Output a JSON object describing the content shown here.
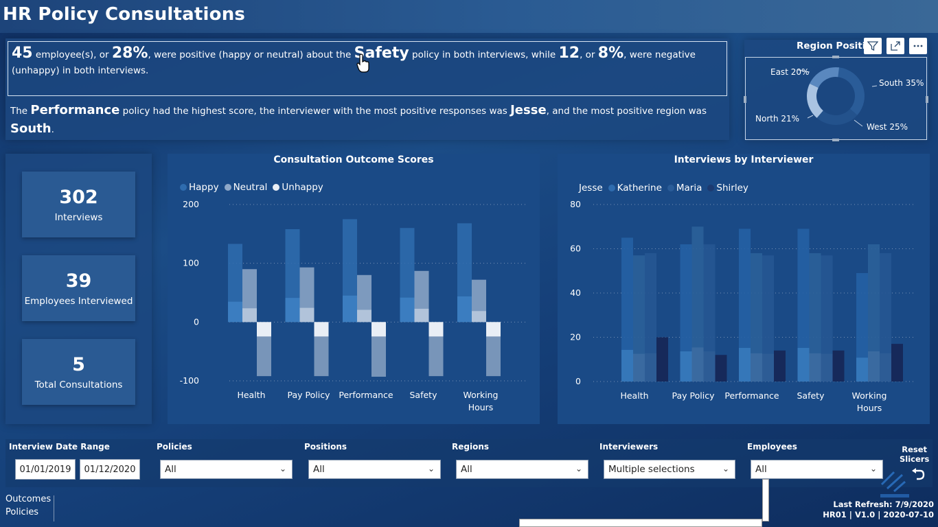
{
  "header": {
    "title": "HR Policy Consultations"
  },
  "narrative": {
    "s1_n1": "45",
    "s1_t1": " employee(s), or ",
    "s1_p1": "28%",
    "s1_t2": ", were positive (happy or neutral) about the ",
    "s1_policy": "Safety",
    "s1_t3": " policy in both interviews, while ",
    "s1_n2": "12",
    "s1_t4": ", or ",
    "s1_p2": "8%",
    "s1_t5": ", were negative (unhappy) in both interviews.",
    "s2_t1": "The ",
    "s2_policy": "Performance",
    "s2_t2": " policy had the highest score, the interviewer with the most positive responses was ",
    "s2_interviewer": "Jesse",
    "s2_t3": ", and the most positive region was ",
    "s2_region": "South",
    "s2_t4": "."
  },
  "region_chart": {
    "title": "Region Positiv",
    "slices": [
      {
        "label": "South 35%",
        "value": 35,
        "color": "#2a5c98"
      },
      {
        "label": "West 25%",
        "value": 25,
        "color": "#23528c"
      },
      {
        "label": "North 21%",
        "value": 21,
        "color": "#a9c3e2"
      },
      {
        "label": "East 20%",
        "value": 20,
        "color": "#5a88bf"
      }
    ],
    "toolbar": {
      "filter_icon": "filter-icon",
      "focus_icon": "focus-mode-icon",
      "more_icon": "more-options-icon"
    }
  },
  "kpis": [
    {
      "value": "302",
      "label": "Interviews"
    },
    {
      "value": "39",
      "label": "Employees Interviewed"
    },
    {
      "value": "5",
      "label": "Total Consultations"
    }
  ],
  "outcome_chart": {
    "title": "Consultation Outcome Scores",
    "legend": [
      {
        "label": "Happy",
        "color": "#2f6cae"
      },
      {
        "label": "Neutral",
        "color": "#8fa8c8"
      },
      {
        "label": "Unhappy",
        "color": "#e9eef5"
      }
    ],
    "y_ticks": [
      "200",
      "100",
      "0",
      "-100"
    ],
    "x_labels": [
      [
        "Health"
      ],
      [
        "Pay Policy"
      ],
      [
        "Performance"
      ],
      [
        "Safety"
      ],
      [
        "Working",
        "Hours"
      ]
    ]
  },
  "interviewer_chart": {
    "title": "Interviews by Interviewer",
    "legend": [
      {
        "label": "Jesse",
        "color": "#1a4a86"
      },
      {
        "label": "Katherine",
        "color": "#2f6cae"
      },
      {
        "label": "Maria",
        "color": "#2a5c98"
      },
      {
        "label": "Shirley",
        "color": "#1c3a70"
      }
    ],
    "y_ticks": [
      "80",
      "60",
      "40",
      "20",
      "0"
    ],
    "x_labels": [
      [
        "Health"
      ],
      [
        "Pay Policy"
      ],
      [
        "Performance"
      ],
      [
        "Safety"
      ],
      [
        "Working",
        "Hours"
      ]
    ]
  },
  "chart_data": [
    {
      "type": "bar",
      "title": "Consultation Outcome Scores",
      "categories": [
        "Health",
        "Pay Policy",
        "Performance",
        "Safety",
        "Working Hours"
      ],
      "ylim": [
        -100,
        200
      ],
      "series": [
        {
          "name": "Happy",
          "values": [
            133,
            158,
            175,
            160,
            168
          ]
        },
        {
          "name": "Neutral",
          "values": [
            90,
            93,
            80,
            87,
            72
          ]
        },
        {
          "name": "Unhappy",
          "values": [
            -92,
            -92,
            -93,
            -92,
            -92
          ]
        }
      ]
    },
    {
      "type": "bar",
      "title": "Interviews by Interviewer",
      "categories": [
        "Health",
        "Pay Policy",
        "Performance",
        "Safety",
        "Working Hours"
      ],
      "ylim": [
        0,
        80
      ],
      "series": [
        {
          "name": "Jesse",
          "values": [
            65,
            62,
            69,
            69,
            49
          ]
        },
        {
          "name": "Katherine",
          "values": [
            57,
            70,
            58,
            58,
            62
          ]
        },
        {
          "name": "Maria",
          "values": [
            58,
            62,
            57,
            57,
            58
          ]
        },
        {
          "name": "Shirley",
          "values": [
            20,
            12,
            14,
            14,
            17
          ]
        }
      ]
    }
  ],
  "slicers": {
    "date_range": {
      "title": "Interview Date Range",
      "from": "01/01/2019",
      "to": "01/12/2020"
    },
    "dropdowns": [
      {
        "title": "Policies",
        "value": "All"
      },
      {
        "title": "Positions",
        "value": "All"
      },
      {
        "title": "Regions",
        "value": "All"
      },
      {
        "title": "Interviewers",
        "value": "Multiple selections"
      },
      {
        "title": "Employees",
        "value": "All"
      }
    ],
    "reset_label_1": "Reset",
    "reset_label_2": "Slicers"
  },
  "nav": {
    "item1": "Outcomes",
    "item2": "Policies"
  },
  "footer": {
    "refresh": "Last Refresh: 7/9/2020",
    "version": "HR01 | V1.0 | 2020-07-10"
  }
}
